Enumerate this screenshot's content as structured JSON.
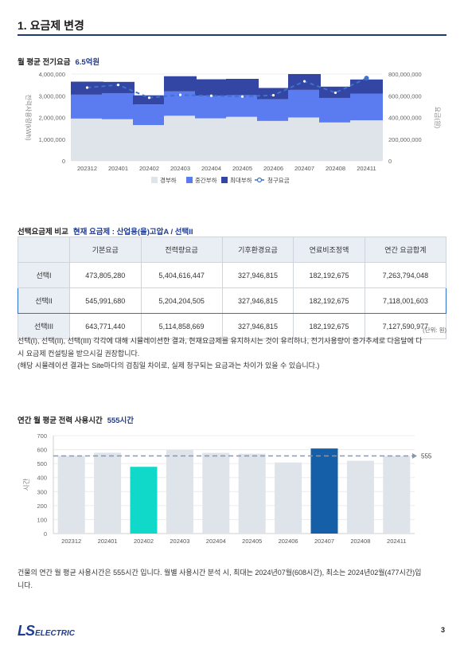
{
  "section": {
    "title": "1. 요금제 변경"
  },
  "monthly_cost": {
    "label": "월 평균 전기요금",
    "value": "6.5억원"
  },
  "chart1": {
    "left_axis_label": "전력사용량(kWh)",
    "right_axis_label": "요금(원)",
    "legend": [
      "경부하",
      "중간부하",
      "최대부하",
      "청구요금"
    ]
  },
  "comparison": {
    "label": "선택요금제 비교",
    "current_plan": "현재 요금제 : 산업용(을)고압A / 선택II",
    "headers": [
      "",
      "기본요금",
      "전력량요금",
      "기후환경요금",
      "연료비조정액",
      "연간 요금합계"
    ],
    "rows": [
      [
        "선택I",
        "473,805,280",
        "5,404,616,447",
        "327,946,815",
        "182,192,675",
        "7,263,794,048"
      ],
      [
        "선택II",
        "545,991,680",
        "5,204,204,505",
        "327,946,815",
        "182,192,675",
        "7,118,001,603"
      ],
      [
        "선택III",
        "643,771,440",
        "5,114,858,669",
        "327,946,815",
        "182,192,675",
        "7,127,590,977"
      ]
    ],
    "unit": "(단위: 원)",
    "note_line1": "선택(I), 선택(II), 선택(III) 각각에 대해 시뮬레이션한 결과, 현재요금제를 유지하시는 것이 유리하나, 전기사용량이 증가추세로 다음달에 다",
    "note_line2": "시 요금제 컨설팅을 받으시길 권장합니다.",
    "note_line3": "(해당 시뮬레이션 결과는 Site마다의 검침일 차이로, 실제 청구되는 요금과는 차이가 있을 수 있습니다.)"
  },
  "usage": {
    "label": "연간 월 평균 전력 사용시간",
    "value": "555시간",
    "y_axis_label": "시간",
    "summary_line1": "건물의 연간 월 평균 사용시간은 555시간 입니다. 월별 사용시간 분석 시, 최대는 2024년07월(608시간), 최소는 2024년02월(477시간)입",
    "summary_line2": "니다."
  },
  "footer": {
    "logo_ls": "LS",
    "logo_electric": "ELECTRIC",
    "page_number": "3"
  },
  "colors": {
    "light_load": "#dfe3ea",
    "mid_load": "#5b7cf0",
    "max_load": "#3346a3",
    "billing_line": "#3f72c8",
    "usage_bar": "#dfe3ea",
    "usage_min": "#10d9c9",
    "usage_max": "#155fa8",
    "accent": "#1f3b8f"
  },
  "chart_data": [
    {
      "type": "bar",
      "stacked": true,
      "categories": [
        "202312",
        "202401",
        "202402",
        "202403",
        "202404",
        "202405",
        "202406",
        "202407",
        "202408",
        "202411"
      ],
      "series": [
        {
          "name": "경부하",
          "values": [
            1950000,
            1920000,
            1650000,
            2080000,
            1960000,
            2030000,
            1840000,
            2000000,
            1770000,
            1870000
          ]
        },
        {
          "name": "중간부하",
          "values": [
            1100000,
            1200000,
            950000,
            1120000,
            1050000,
            1000000,
            1000000,
            1270000,
            1130000,
            1230000
          ]
        },
        {
          "name": "최대부하",
          "values": [
            600000,
            520000,
            420000,
            700000,
            750000,
            750000,
            520000,
            730000,
            520000,
            650000
          ]
        },
        {
          "name": "청구요금",
          "axis": "right",
          "kind": "line",
          "values": [
            675000000,
            700000000,
            582000000,
            608000000,
            600000000,
            593000000,
            605000000,
            733000000,
            628000000,
            762000000
          ]
        }
      ],
      "ylim": [
        0,
        4000000
      ],
      "y_ticks": [
        "0",
        "1,000,000",
        "2,000,000",
        "3,000,000",
        "4,000,000"
      ],
      "y2lim": [
        0,
        800000000
      ],
      "y2_ticks": [
        "0",
        "200,000,000",
        "400,000,000",
        "600,000,000",
        "800,000,000"
      ],
      "grid": true,
      "legend": "bottom"
    },
    {
      "type": "bar",
      "categories": [
        "202312",
        "202401",
        "202402",
        "202403",
        "202404",
        "202405",
        "202406",
        "202407",
        "202408",
        "202411"
      ],
      "values": [
        556,
        578,
        477,
        598,
        577,
        571,
        508,
        608,
        520,
        555
      ],
      "ylim": [
        0,
        700
      ],
      "y_ticks": [
        "0",
        "100",
        "200",
        "300",
        "400",
        "500",
        "600",
        "700"
      ],
      "reference_line": {
        "value": 555,
        "label": "555"
      },
      "highlight": {
        "max": "202407",
        "min": "202402"
      },
      "grid": true
    }
  ]
}
